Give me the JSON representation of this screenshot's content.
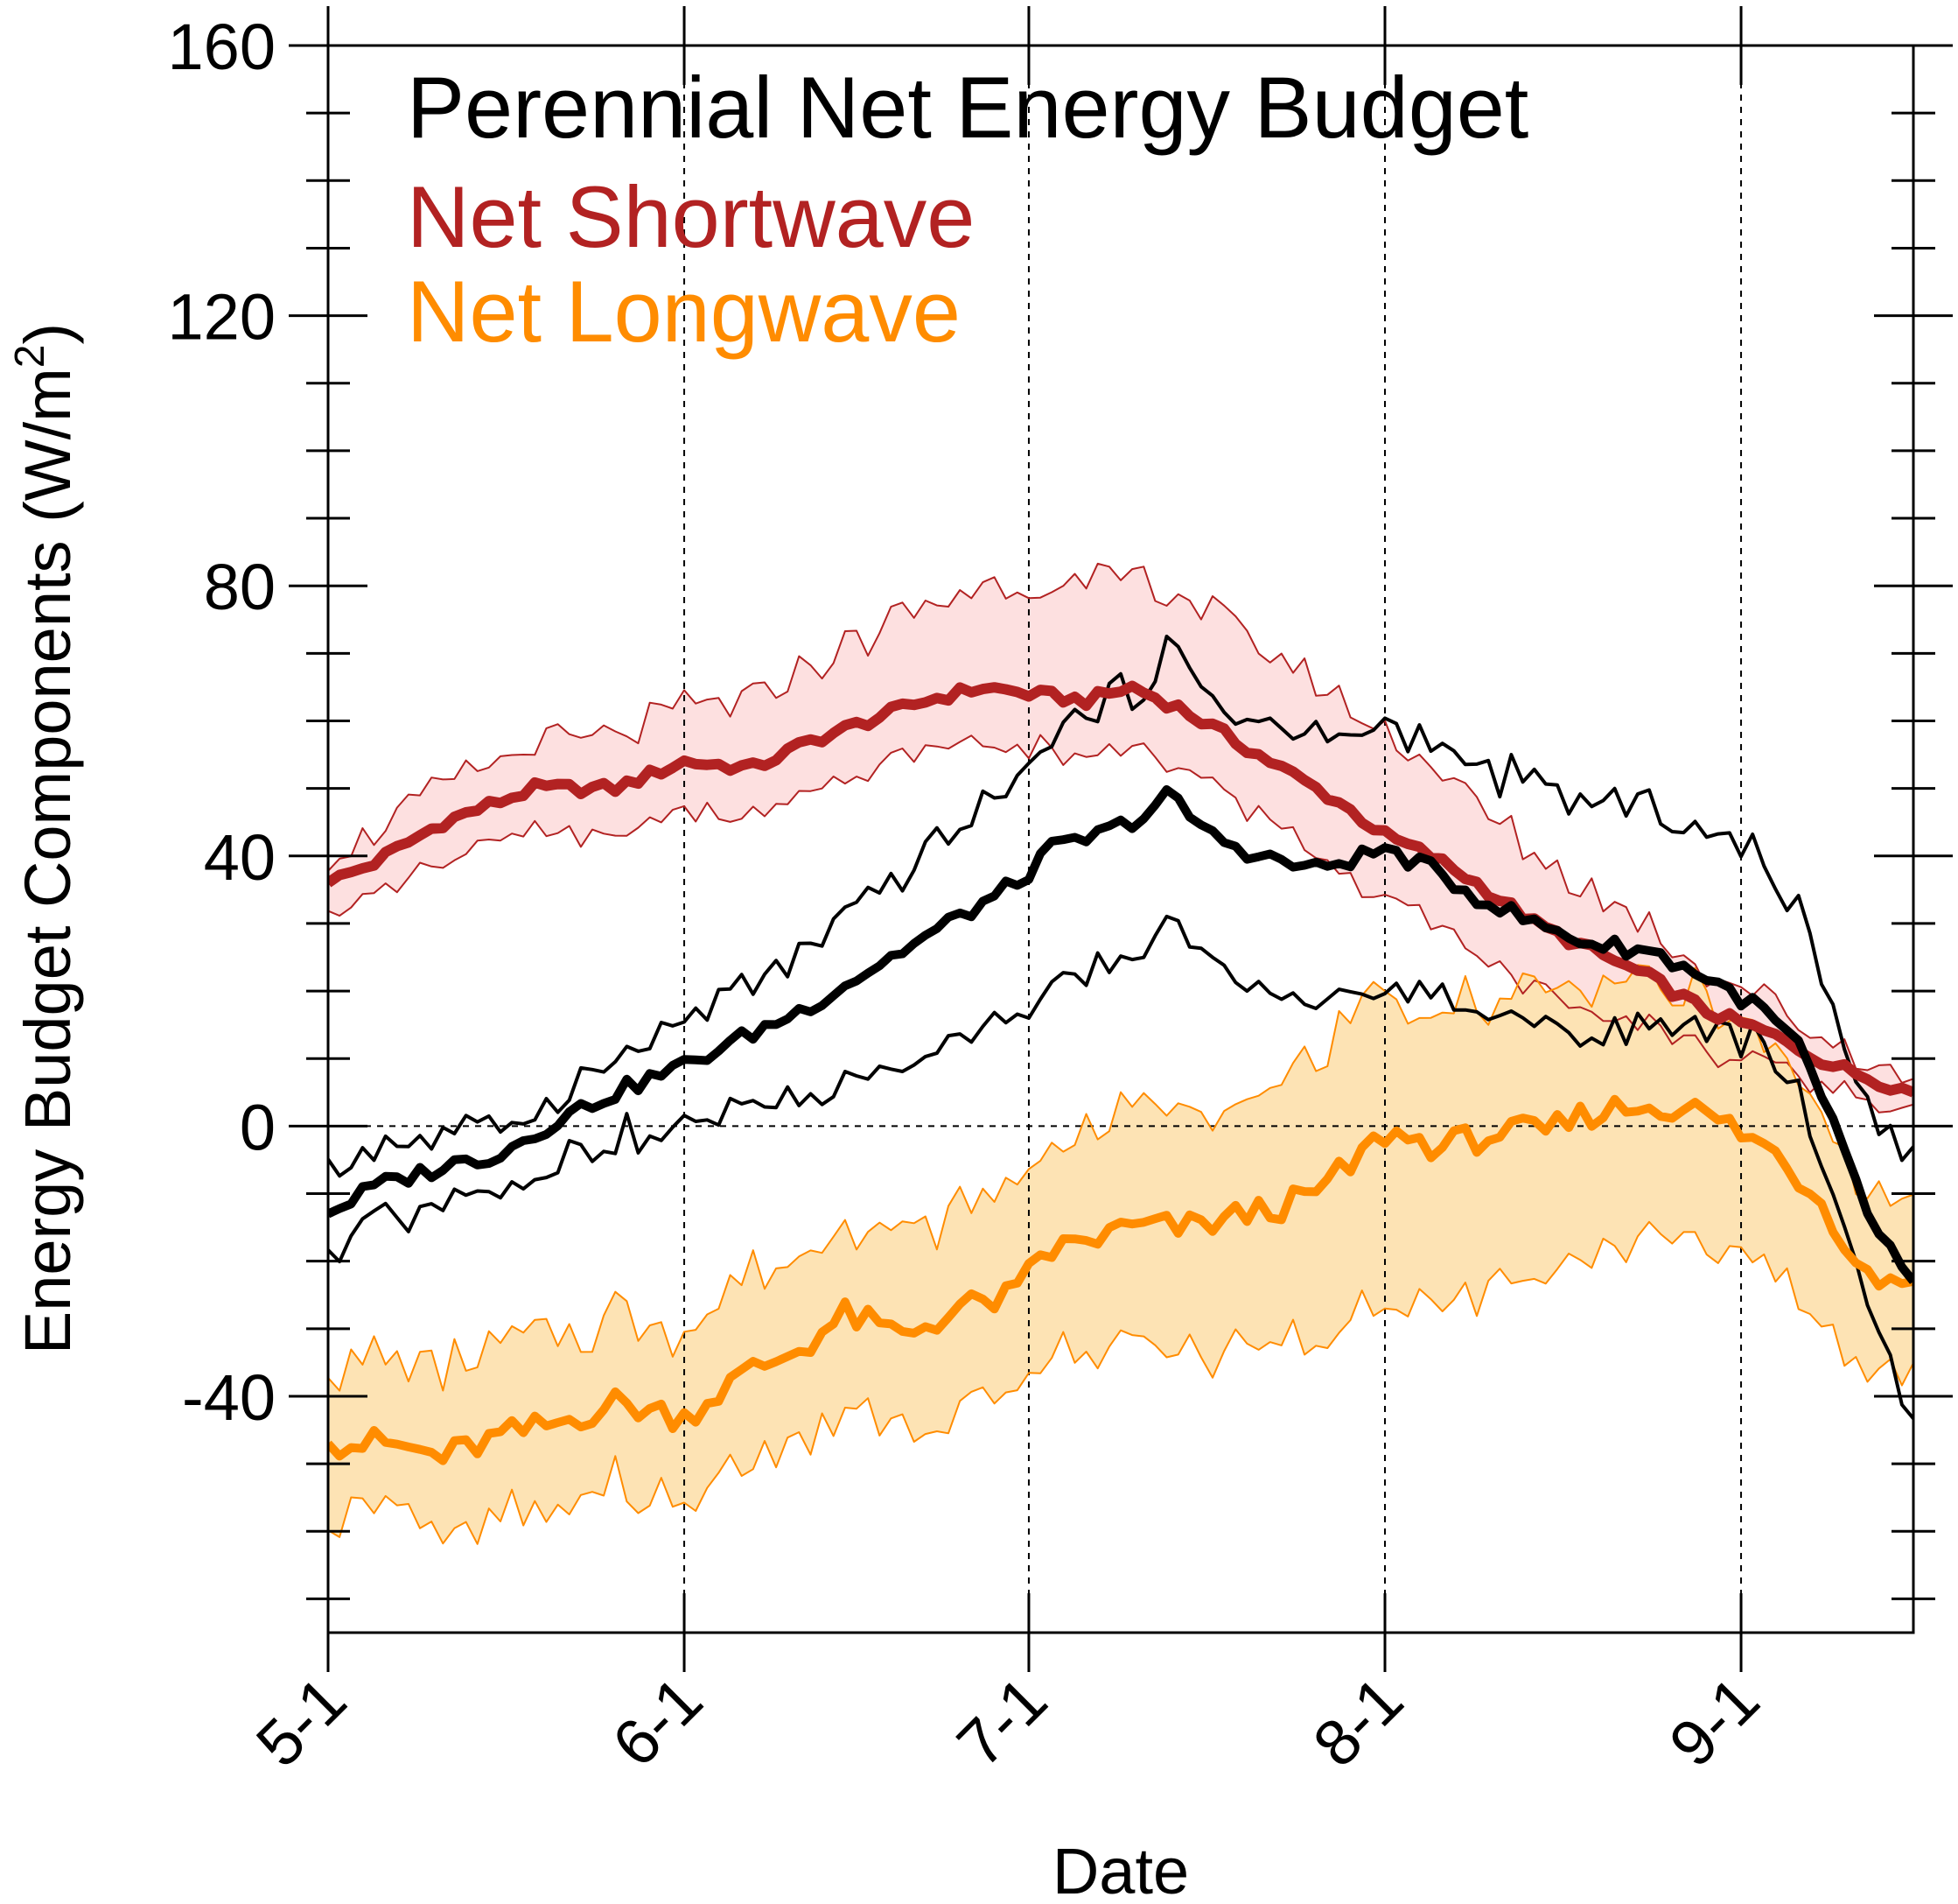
{
  "chart_data": {
    "type": "line",
    "title": "Perennial Net Energy Budget",
    "xlabel": "Date",
    "ylabel": "Energy Budget Components (W/m",
    "ylabel_superscript": "2",
    "ylabel_close": ")",
    "x_start": "5-1",
    "x_end": "9-17",
    "x_ticks": [
      {
        "label": "5-1",
        "day": 0
      },
      {
        "label": "6-1",
        "day": 31
      },
      {
        "label": "7-1",
        "day": 61
      },
      {
        "label": "8-1",
        "day": 92
      },
      {
        "label": "9-1",
        "day": 123
      }
    ],
    "ylim": [
      -75,
      160
    ],
    "y_ticks": [
      160,
      120,
      80,
      40,
      0,
      -40
    ],
    "y_minor_step": 10,
    "grid": "dashed vertical lines at month starts and dashed zero line",
    "legend": [
      {
        "label": "Perennial Net Energy Budget",
        "color": "#000000"
      },
      {
        "label": "Net Shortwave",
        "color": "#b22222"
      },
      {
        "label": "Net Longwave",
        "color": "#ff8c00"
      }
    ],
    "series": [
      {
        "name": "Net Shortwave",
        "color": "#b22222",
        "band_fill": "#fde0e0",
        "knots": [
          [
            0,
            36
          ],
          [
            4,
            39
          ],
          [
            10,
            45
          ],
          [
            18,
            50
          ],
          [
            25,
            50
          ],
          [
            31,
            54
          ],
          [
            37,
            53
          ],
          [
            42,
            57
          ],
          [
            47,
            60
          ],
          [
            52,
            63
          ],
          [
            57,
            65
          ],
          [
            61,
            64
          ],
          [
            66,
            63
          ],
          [
            70,
            65
          ],
          [
            74,
            62
          ],
          [
            78,
            58
          ],
          [
            83,
            53
          ],
          [
            88,
            48
          ],
          [
            92,
            43
          ],
          [
            96,
            40
          ],
          [
            100,
            36
          ],
          [
            105,
            30
          ],
          [
            110,
            26
          ],
          [
            115,
            22
          ],
          [
            120,
            17
          ],
          [
            125,
            14
          ],
          [
            131,
            9
          ],
          [
            138,
            5
          ]
        ],
        "lower_offset": [
          [
            0,
            5
          ],
          [
            30,
            7
          ],
          [
            60,
            8
          ],
          [
            80,
            9
          ],
          [
            92,
            10
          ],
          [
            105,
            10
          ],
          [
            120,
            6
          ],
          [
            138,
            2
          ]
        ],
        "upper_offset": [
          [
            0,
            4
          ],
          [
            30,
            8
          ],
          [
            60,
            16
          ],
          [
            75,
            17
          ],
          [
            92,
            15
          ],
          [
            105,
            10
          ],
          [
            120,
            6
          ],
          [
            138,
            2
          ]
        ]
      },
      {
        "name": "Net Longwave",
        "color": "#ff8c00",
        "band_fill": "#fde3b4",
        "knots": [
          [
            0,
            -47
          ],
          [
            5,
            -47
          ],
          [
            10,
            -49
          ],
          [
            15,
            -46
          ],
          [
            20,
            -44
          ],
          [
            25,
            -41
          ],
          [
            31,
            -43
          ],
          [
            36,
            -37
          ],
          [
            41,
            -33
          ],
          [
            45,
            -28
          ],
          [
            50,
            -31
          ],
          [
            55,
            -27
          ],
          [
            60,
            -25
          ],
          [
            62,
            -19
          ],
          [
            66,
            -17
          ],
          [
            70,
            -15
          ],
          [
            75,
            -15
          ],
          [
            80,
            -13
          ],
          [
            85,
            -11
          ],
          [
            89,
            -6
          ],
          [
            92,
            -1
          ],
          [
            97,
            -3
          ],
          [
            102,
            -1
          ],
          [
            106,
            -1
          ],
          [
            110,
            2
          ],
          [
            114,
            3
          ],
          [
            118,
            3
          ],
          [
            122,
            0
          ],
          [
            126,
            -4
          ],
          [
            130,
            -11
          ],
          [
            134,
            -22
          ],
          [
            138,
            -23
          ]
        ],
        "lower_offset": [
          [
            0,
            10
          ],
          [
            60,
            15
          ],
          [
            92,
            24
          ],
          [
            125,
            18
          ],
          [
            138,
            14
          ]
        ],
        "upper_offset": [
          [
            0,
            12
          ],
          [
            60,
            15
          ],
          [
            92,
            20
          ],
          [
            110,
            20
          ],
          [
            125,
            15
          ],
          [
            138,
            12
          ]
        ]
      },
      {
        "name": "Perennial Net Energy Budget",
        "color": "#000000",
        "knots": [
          [
            0,
            -13
          ],
          [
            4,
            -9
          ],
          [
            10,
            -6
          ],
          [
            15,
            -4
          ],
          [
            20,
            1
          ],
          [
            25,
            5
          ],
          [
            31,
            9
          ],
          [
            36,
            13
          ],
          [
            41,
            17
          ],
          [
            46,
            22
          ],
          [
            51,
            27
          ],
          [
            56,
            32
          ],
          [
            60,
            36
          ],
          [
            63,
            41
          ],
          [
            67,
            43
          ],
          [
            71,
            46
          ],
          [
            73,
            49
          ],
          [
            77,
            43
          ],
          [
            81,
            40
          ],
          [
            86,
            38
          ],
          [
            92,
            41
          ],
          [
            96,
            38
          ],
          [
            100,
            34
          ],
          [
            105,
            30
          ],
          [
            110,
            27
          ],
          [
            115,
            26
          ],
          [
            120,
            22
          ],
          [
            125,
            17
          ],
          [
            128,
            12
          ],
          [
            131,
            0
          ],
          [
            134,
            -13
          ],
          [
            137,
            -21
          ],
          [
            138,
            -23
          ]
        ],
        "lower_offset": [
          [
            0,
            6
          ],
          [
            20,
            5
          ],
          [
            40,
            12
          ],
          [
            60,
            20
          ],
          [
            73,
            20
          ],
          [
            92,
            20
          ],
          [
            110,
            13
          ],
          [
            125,
            5
          ],
          [
            131,
            10
          ],
          [
            138,
            20
          ]
        ],
        "upper_offset": [
          [
            0,
            6
          ],
          [
            20,
            4
          ],
          [
            40,
            8
          ],
          [
            60,
            15
          ],
          [
            73,
            21
          ],
          [
            92,
            18
          ],
          [
            110,
            21
          ],
          [
            125,
            22
          ],
          [
            131,
            16
          ],
          [
            138,
            18
          ]
        ]
      }
    ]
  }
}
